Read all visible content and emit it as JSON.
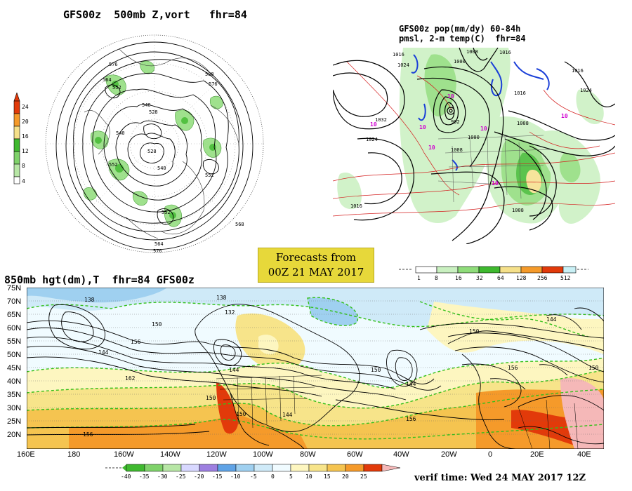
{
  "panel_500mb": {
    "title": "GFS00z  500mb Z,vort   fhr=84",
    "colorbar": {
      "labels": [
        "4",
        "8",
        "12",
        "16",
        "20",
        "24"
      ],
      "colors": [
        "#ffffff",
        "#b7e6a5",
        "#7fd26a",
        "#3fb92f",
        "#f5e08a",
        "#f59a2a",
        "#e23a0a"
      ]
    },
    "contour_labels": [
      "576",
      "564",
      "552",
      "540",
      "528",
      "540",
      "552",
      "564",
      "576",
      "588",
      "564",
      "576",
      "552",
      "540",
      "528",
      "540",
      "552",
      "564",
      "576"
    ]
  },
  "panel_pop": {
    "title_line1": "GFS00z pop(mm/dy) 60-84h",
    "title_line2": "pmsl, 2-m temp(C)  fhr=84",
    "isobar_labels": [
      "1024",
      "1016",
      "1000",
      "1000",
      "1024",
      "1016",
      "1024",
      "1016",
      "1008",
      "1008",
      "1016",
      "1008",
      "1008",
      "1016"
    ],
    "temp_labels": [
      "10",
      "10",
      "10",
      "10",
      "10",
      "10",
      "10"
    ],
    "colorbar": {
      "labels": [
        "1",
        "8",
        "16",
        "32",
        "64",
        "128",
        "256",
        "512"
      ],
      "colors": [
        "#ffffff",
        "#c9f0c0",
        "#8fdc7a",
        "#3fb92f",
        "#f5e08a",
        "#f59a2a",
        "#e23a0a",
        "#c9f0f5"
      ]
    }
  },
  "forecast_box": {
    "line1": "Forecasts from",
    "line2": "00Z 21 MAY 2017"
  },
  "panel_850": {
    "title": "850mb hgt(dm),T  fhr=84 GFS00z",
    "lat_labels": [
      "75N",
      "70N",
      "65N",
      "60N",
      "55N",
      "50N",
      "45N",
      "40N",
      "35N",
      "30N",
      "25N",
      "20N"
    ],
    "lon_labels": [
      "160E",
      "180",
      "160W",
      "140W",
      "120W",
      "100W",
      "80W",
      "60W",
      "40W",
      "20W",
      "0",
      "20E",
      "40E"
    ],
    "contour_labels": [
      "138",
      "150",
      "156",
      "144",
      "162",
      "156",
      "138",
      "132",
      "144",
      "150",
      "150",
      "144",
      "156",
      "150",
      "156",
      "150",
      "156",
      "144"
    ],
    "colorbar": {
      "labels": [
        "-40",
        "-35",
        "-30",
        "-25",
        "-20",
        "-15",
        "-10",
        "-5",
        "0",
        "5",
        "10",
        "15",
        "20",
        "25"
      ],
      "colors": [
        "#3fb92f",
        "#7fd26a",
        "#b7e6a5",
        "#d8d8ff",
        "#9d7fe0",
        "#5fa3e6",
        "#9fd0f0",
        "#cfeaf8",
        "#f0fbff",
        "#fdf6c0",
        "#f7e48a",
        "#f5c450",
        "#f59a2a",
        "#e23a0a",
        "#f5b8b8"
      ]
    }
  },
  "verif_time": "verif time: Wed 24 MAY 2017 12Z"
}
